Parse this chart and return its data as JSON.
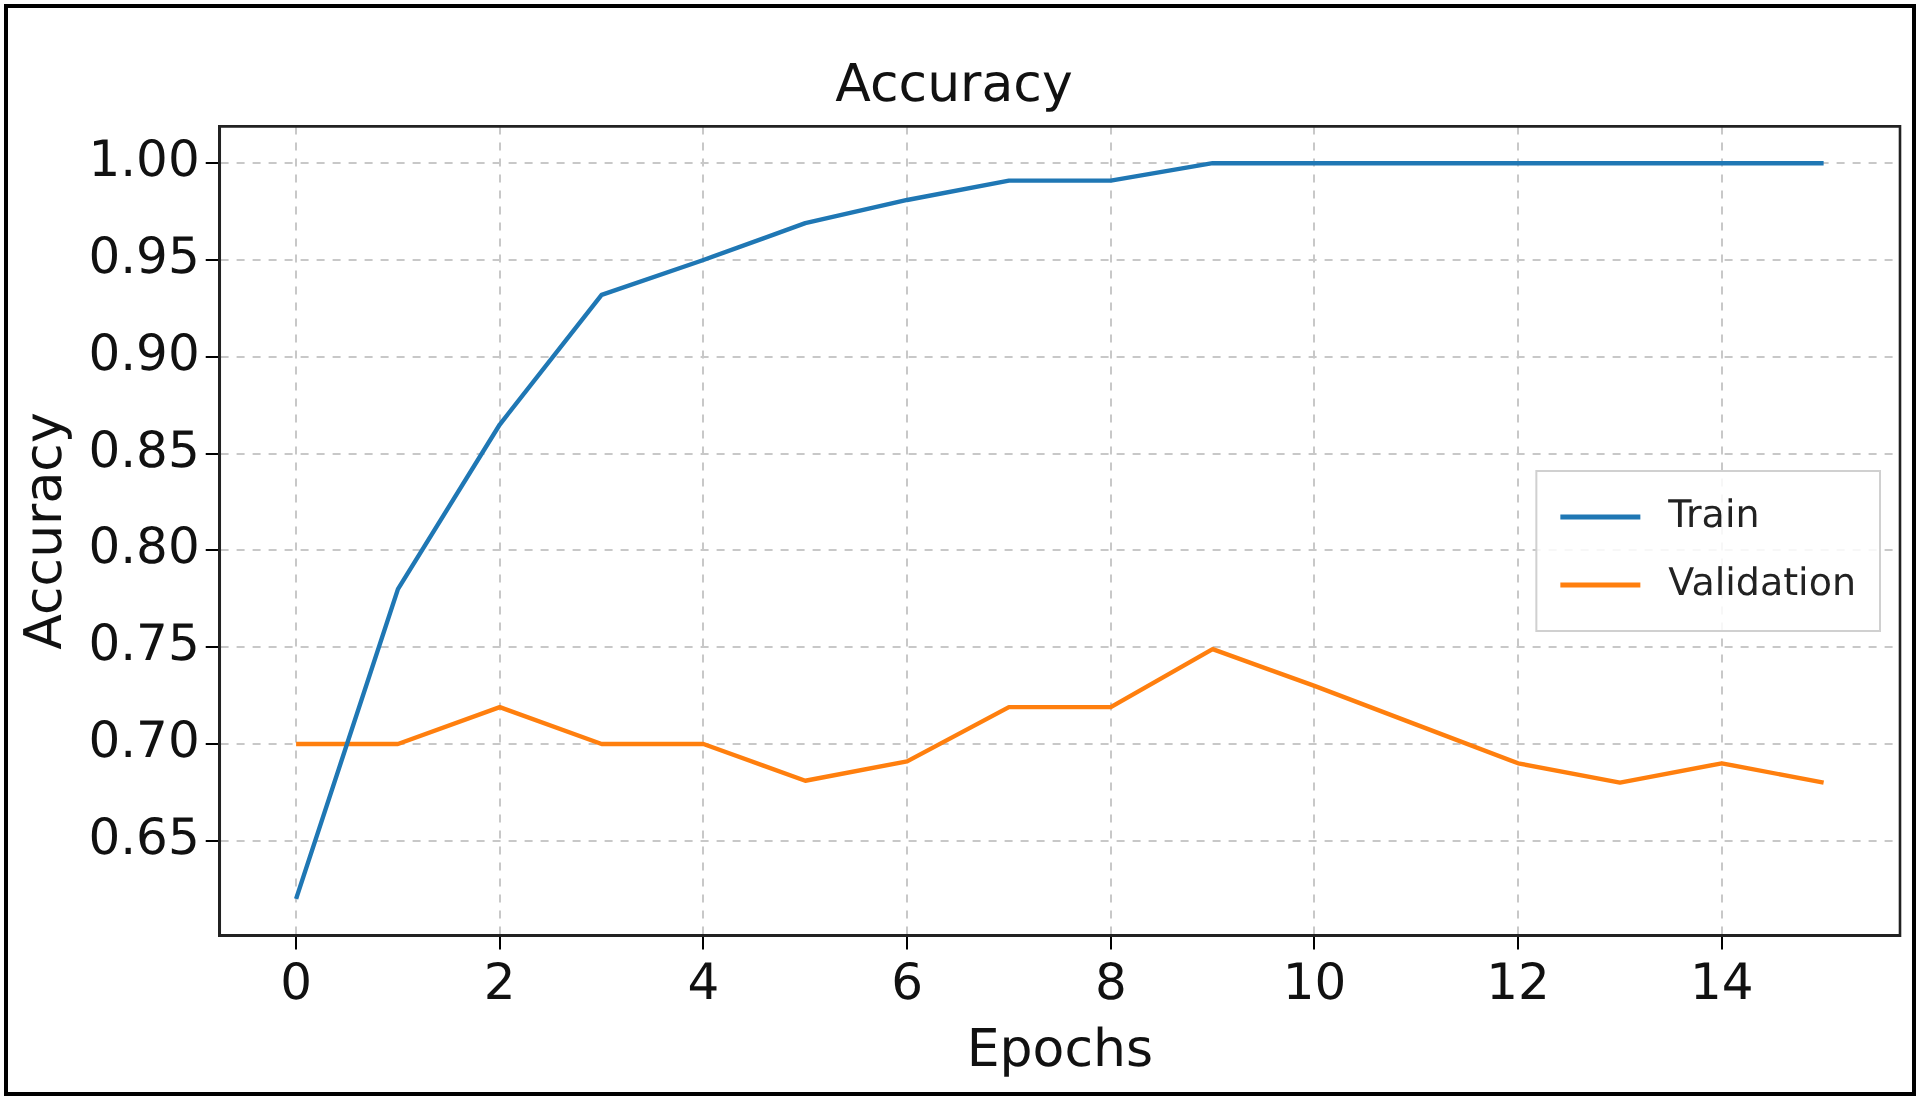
{
  "chart_data": {
    "type": "line",
    "title": "Accuracy",
    "xlabel": "Epochs",
    "ylabel": "Accuracy",
    "x": [
      0,
      1,
      2,
      3,
      4,
      5,
      6,
      7,
      8,
      9,
      10,
      11,
      12,
      13,
      14,
      15
    ],
    "series": [
      {
        "name": "Train",
        "color": "#1f77b4",
        "values": [
          0.62,
          0.78,
          0.865,
          0.932,
          0.95,
          0.969,
          0.981,
          0.991,
          0.991,
          1.0,
          1.0,
          1.0,
          1.0,
          1.0,
          1.0,
          1.0
        ]
      },
      {
        "name": "Validation",
        "color": "#ff7f0e",
        "values": [
          0.7,
          0.7,
          0.719,
          0.7,
          0.7,
          0.681,
          0.691,
          0.719,
          0.719,
          0.749,
          0.73,
          0.71,
          0.69,
          0.68,
          0.69,
          0.68
        ]
      }
    ],
    "xlim": [
      -0.75,
      15.75
    ],
    "xticks": [
      0,
      2,
      4,
      6,
      8,
      10,
      12,
      14
    ],
    "ylim": [
      0.601,
      1.019
    ],
    "yticks": [
      {
        "value": 0.65,
        "label": "0.65"
      },
      {
        "value": 0.7,
        "label": "0.70"
      },
      {
        "value": 0.75,
        "label": "0.75"
      },
      {
        "value": 0.8,
        "label": "0.80"
      },
      {
        "value": 0.85,
        "label": "0.85"
      },
      {
        "value": 0.9,
        "label": "0.90"
      },
      {
        "value": 0.95,
        "label": "0.95"
      },
      {
        "value": 1.0,
        "label": "1.00"
      }
    ],
    "grid": true,
    "legend": "right",
    "line_style": "solid",
    "marker": "none"
  }
}
